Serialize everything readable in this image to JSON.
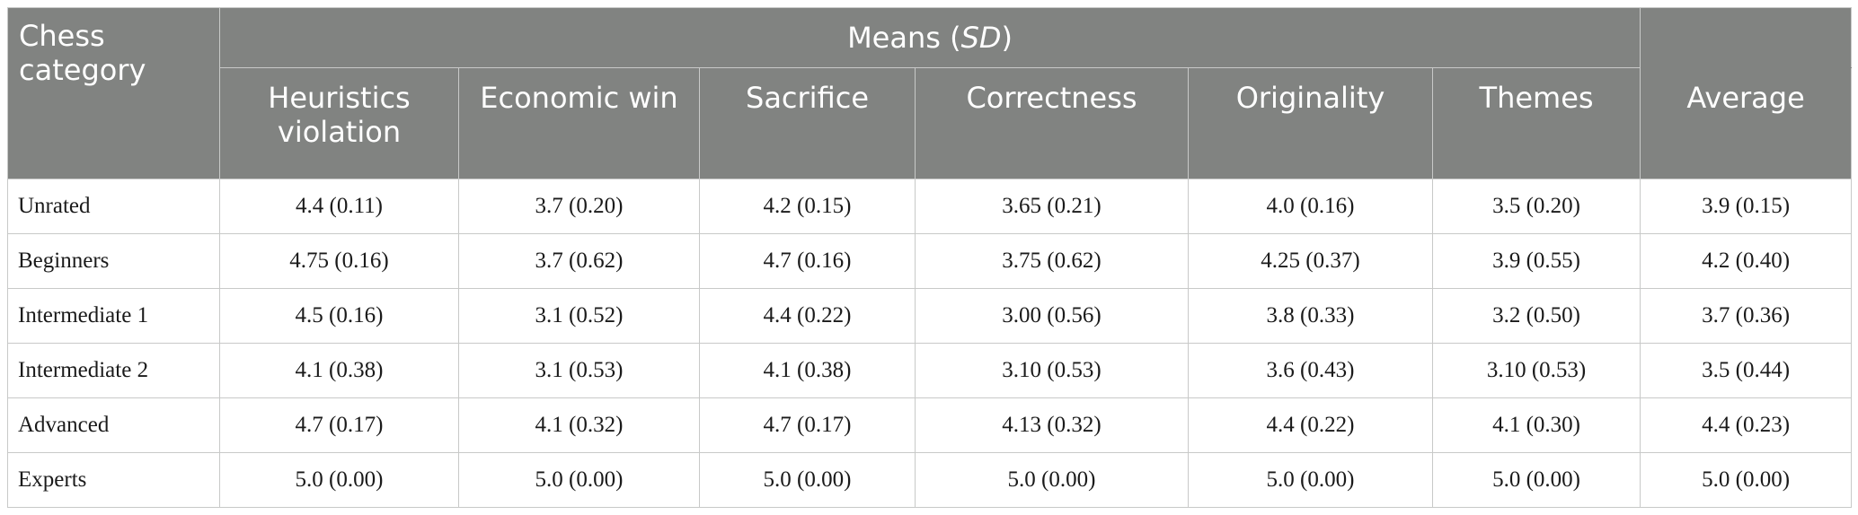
{
  "table": {
    "stub_header": "Chess category",
    "group_header": {
      "text": "Means (",
      "italic": "SD",
      "close": ")"
    },
    "columns": [
      "Heuristics violation",
      "Economic win",
      "Sacrifice",
      "Correctness",
      "Originality",
      "Themes",
      "Average"
    ],
    "rows": [
      {
        "category": "Unrated",
        "values": [
          "4.4 (0.11)",
          "3.7 (0.20)",
          "4.2 (0.15)",
          "3.65 (0.21)",
          "4.0 (0.16)",
          "3.5 (0.20)",
          "3.9 (0.15)"
        ]
      },
      {
        "category": "Beginners",
        "values": [
          "4.75 (0.16)",
          "3.7 (0.62)",
          "4.7 (0.16)",
          "3.75 (0.62)",
          "4.25 (0.37)",
          "3.9 (0.55)",
          "4.2 (0.40)"
        ]
      },
      {
        "category": "Intermediate 1",
        "values": [
          "4.5 (0.16)",
          "3.1 (0.52)",
          "4.4 (0.22)",
          "3.00 (0.56)",
          "3.8 (0.33)",
          "3.2 (0.50)",
          "3.7 (0.36)"
        ]
      },
      {
        "category": "Intermediate 2",
        "values": [
          "4.1 (0.38)",
          "3.1 (0.53)",
          "4.1 (0.38)",
          "3.10 (0.53)",
          "3.6 (0.43)",
          "3.10 (0.53)",
          "3.5 (0.44)"
        ]
      },
      {
        "category": "Advanced",
        "values": [
          "4.7 (0.17)",
          "4.1 (0.32)",
          "4.7 (0.17)",
          "4.13 (0.32)",
          "4.4 (0.22)",
          "4.1 (0.30)",
          "4.4 (0.23)"
        ]
      },
      {
        "category": "Experts",
        "values": [
          "5.0 (0.00)",
          "5.0 (0.00)",
          "5.0 (0.00)",
          "5.0 (0.00)",
          "5.0 (0.00)",
          "5.0 (0.00)",
          "5.0 (0.00)"
        ]
      }
    ],
    "colors": {
      "header_bg": "#818381",
      "header_text": "#ffffff",
      "border": "#c8c9c8",
      "body_text": "#1a1a1a"
    }
  }
}
